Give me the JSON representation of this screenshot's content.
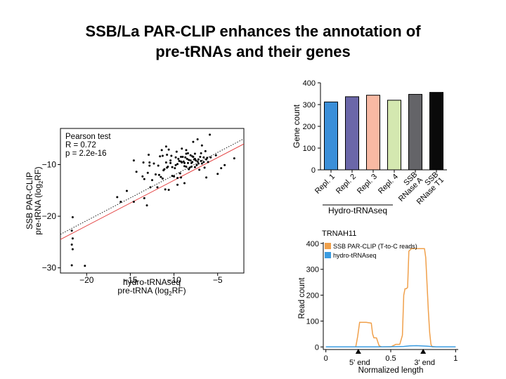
{
  "slide": {
    "title_line1": "SSB/La PAR-CLIP enhances the annotation of",
    "title_line2": "pre-tRNAs and their genes"
  },
  "chart_data": [
    {
      "type": "scatter",
      "annotation": [
        "Pearson test",
        "R = 0.72",
        "p = 2.2e-16"
      ],
      "xlabel_line1": "hydro-tRNAseq",
      "xlabel_line2": "pre-tRNA (log",
      "xlabel_sub": "2",
      "xlabel_end": "RF)",
      "ylabel_line1": "SSB PAR-CLIP",
      "ylabel_line2": "pre-tRNA (log",
      "ylabel_sub": "2",
      "ylabel_end": "RF)",
      "xlim": [
        -23,
        -2
      ],
      "ylim": [
        -31,
        -3
      ],
      "xticks": [
        -20,
        -15,
        -10,
        -5
      ],
      "yticks": [
        -10,
        -20,
        -30
      ],
      "xtick_labels": [
        "−20",
        "−15",
        "−10",
        "−5"
      ],
      "ytick_labels": [
        "−10",
        "−20",
        "−30"
      ],
      "lines": [
        {
          "style": "dotted",
          "color": "#000000",
          "x": [
            -23,
            -2
          ],
          "y": [
            -23.5,
            -5.0
          ]
        },
        {
          "style": "solid",
          "color": "#e33b3b",
          "x": [
            -23,
            -2
          ],
          "y": [
            -24.5,
            -6.0
          ]
        }
      ],
      "points": [
        [
          -21.6,
          -20.2
        ],
        [
          -21.7,
          -22.8
        ],
        [
          -21.6,
          -24.3
        ],
        [
          -21.7,
          -25.5
        ],
        [
          -21.6,
          -26.4
        ],
        [
          -21.7,
          -29.5
        ],
        [
          -20.2,
          -29.6
        ],
        [
          -16.5,
          -16.3
        ],
        [
          -16.1,
          -17.2
        ],
        [
          -15.4,
          -15.1
        ],
        [
          -14.6,
          -17.2
        ],
        [
          -13.4,
          -16.5
        ],
        [
          -13.1,
          -17.9
        ],
        [
          -13.0,
          -11.6
        ],
        [
          -12.8,
          -9.6
        ],
        [
          -12.5,
          -13.0
        ],
        [
          -11.9,
          -14.4
        ],
        [
          -11.7,
          -12.0
        ],
        [
          -11.0,
          -14.8
        ],
        [
          -10.6,
          -14.9
        ],
        [
          -10.9,
          -6.5
        ],
        [
          -9.6,
          -13.9
        ],
        [
          -8.8,
          -13.6
        ],
        [
          -6.3,
          -12.5
        ],
        [
          -5.0,
          -11.8
        ],
        [
          -4.6,
          -10.7
        ],
        [
          -5.2,
          -8.2
        ],
        [
          -4.2,
          -10.1
        ],
        [
          -3.1,
          -8.8
        ],
        [
          -5.9,
          -4.2
        ],
        [
          -7.3,
          -5.1
        ],
        [
          -7.8,
          -5.6
        ],
        [
          -13.6,
          -12.3
        ],
        [
          -14.6,
          -9.2
        ],
        [
          -14.3,
          -11.4
        ],
        [
          -12.7,
          -14.4
        ],
        [
          -13.4,
          -12.8
        ],
        [
          -8.4,
          -7.8
        ],
        [
          -9.1,
          -6.9
        ],
        [
          -6.4,
          -7.4
        ],
        [
          -5.8,
          -8.6
        ],
        [
          -6.8,
          -6.3
        ],
        [
          -12.1,
          -11.9
        ],
        [
          -12.3,
          -9.8
        ],
        [
          -11.6,
          -8.4
        ],
        [
          -11.5,
          -12.4
        ],
        [
          -11.3,
          -8.3
        ],
        [
          -11.2,
          -11.1
        ],
        [
          -11.1,
          -10.9
        ],
        [
          -10.9,
          -9.6
        ],
        [
          -10.8,
          -10.6
        ],
        [
          -10.8,
          -8.1
        ],
        [
          -10.4,
          -9.2
        ],
        [
          -10.3,
          -8.3
        ],
        [
          -10.2,
          -12.2
        ],
        [
          -10.2,
          -10.5
        ],
        [
          -9.9,
          -10.7
        ],
        [
          -9.8,
          -8.6
        ],
        [
          -9.6,
          -12.6
        ],
        [
          -9.5,
          -8.9
        ],
        [
          -9.4,
          -9.3
        ],
        [
          -9.3,
          -11.7
        ],
        [
          -9.2,
          -9.4
        ],
        [
          -9.2,
          -8.5
        ],
        [
          -9.2,
          -12.5
        ],
        [
          -9.1,
          -9.6
        ],
        [
          -9.0,
          -8.5
        ],
        [
          -8.9,
          -9.4
        ],
        [
          -8.8,
          -9.7
        ],
        [
          -8.7,
          -8.6
        ],
        [
          -8.6,
          -7.2
        ],
        [
          -8.6,
          -10.4
        ],
        [
          -8.5,
          -8.9
        ],
        [
          -8.4,
          -9.7
        ],
        [
          -8.3,
          -9.1
        ],
        [
          -8.2,
          -10.6
        ],
        [
          -8.1,
          -8.2
        ],
        [
          -8.1,
          -9.2
        ],
        [
          -8.0,
          -10.4
        ],
        [
          -7.9,
          -9.5
        ],
        [
          -7.9,
          -8.4
        ],
        [
          -7.8,
          -8.5
        ],
        [
          -7.7,
          -9.0
        ],
        [
          -7.6,
          -10.5
        ],
        [
          -7.6,
          -7.9
        ],
        [
          -7.5,
          -9.2
        ],
        [
          -7.4,
          -10.1
        ],
        [
          -7.3,
          -9.4
        ],
        [
          -7.2,
          -9.0
        ],
        [
          -7.1,
          -11.0
        ],
        [
          -7.0,
          -8.5
        ],
        [
          -6.9,
          -7.8
        ],
        [
          -6.9,
          -9.3
        ],
        [
          -6.8,
          -9.8
        ],
        [
          -6.6,
          -8.6
        ],
        [
          -6.6,
          -9.5
        ],
        [
          -6.5,
          -10.6
        ],
        [
          -6.3,
          -9.0
        ],
        [
          -6.2,
          -8.7
        ],
        [
          -6.1,
          -9.5
        ],
        [
          -12.8,
          -10.2
        ],
        [
          -11.8,
          -10.2
        ],
        [
          -10.7,
          -10.4
        ],
        [
          -9.6,
          -9.9
        ],
        [
          -8.8,
          -10.3
        ],
        [
          -8.0,
          -9.7
        ],
        [
          -7.2,
          -9.8
        ],
        [
          -12.9,
          -8.1
        ],
        [
          -13.5,
          -9.6
        ],
        [
          -11.4,
          -7.2
        ],
        [
          -10.6,
          -7.1
        ],
        [
          -9.7,
          -7.5
        ],
        [
          -8.6,
          -7.9
        ],
        [
          -7.6,
          -8.9
        ],
        [
          -11.3,
          -12.7
        ],
        [
          -10.0,
          -12.3
        ],
        [
          -8.3,
          -10.9
        ],
        [
          -10.4,
          -9.7
        ],
        [
          -9.8,
          -10.1
        ]
      ]
    },
    {
      "type": "bar",
      "ylabel": "Gene count",
      "ylim": [
        0,
        400
      ],
      "yticks": [
        0,
        100,
        200,
        300,
        400
      ],
      "categories": [
        "Repl. 1",
        "Repl. 2",
        "Repl. 3",
        "Repl. 4",
        "SSB\nRNase A",
        "SSB\nRNase T1"
      ],
      "values": [
        312,
        336,
        343,
        320,
        347,
        356
      ],
      "colors": [
        "#3b8fd9",
        "#6b67a9",
        "#f8b9a3",
        "#d4e8b0",
        "#646468",
        "#0a0a0a"
      ],
      "group_label": "Hydro-tRNAseq"
    },
    {
      "type": "line",
      "title": "TRNAH11",
      "ylabel": "Read count",
      "xlabel": "Normalized length",
      "xlim": [
        -0.02,
        1.02
      ],
      "ylim": [
        -10,
        405
      ],
      "xticks": [
        0,
        0.5,
        1
      ],
      "xtick_labels": [
        "0",
        "0.5",
        "1"
      ],
      "yticks": [
        0,
        100,
        200,
        300,
        400
      ],
      "markers": [
        {
          "x": 0.25,
          "label": "5' end"
        },
        {
          "x": 0.75,
          "label": "3' end"
        }
      ],
      "series": [
        {
          "name": "SSB PAR-CLIP (T-to-C reads)",
          "color": "#f0a04b",
          "x": [
            0.0,
            0.07,
            0.23,
            0.245,
            0.26,
            0.31,
            0.35,
            0.36,
            0.37,
            0.39,
            0.4,
            0.41,
            0.43,
            0.45,
            0.5,
            0.54,
            0.57,
            0.59,
            0.6,
            0.61,
            0.62,
            0.63,
            0.64,
            0.66,
            0.76,
            0.77,
            0.78,
            0.79,
            0.8,
            0.81,
            0.82,
            0.84,
            0.9,
            1.0
          ],
          "y": [
            0,
            0,
            0,
            40,
            95,
            95,
            92,
            50,
            35,
            35,
            20,
            5,
            0,
            0,
            0,
            10,
            10,
            45,
            200,
            225,
            225,
            230,
            370,
            380,
            380,
            345,
            240,
            140,
            55,
            10,
            0,
            0,
            0,
            0
          ]
        },
        {
          "name": "hydro-tRNAseq",
          "color": "#3a9be0",
          "x": [
            0.0,
            0.4,
            0.55,
            0.6,
            0.65,
            0.7,
            0.78,
            0.85,
            1.0
          ],
          "y": [
            0,
            0,
            1,
            2,
            4,
            5,
            3,
            0,
            0
          ]
        }
      ]
    }
  ]
}
